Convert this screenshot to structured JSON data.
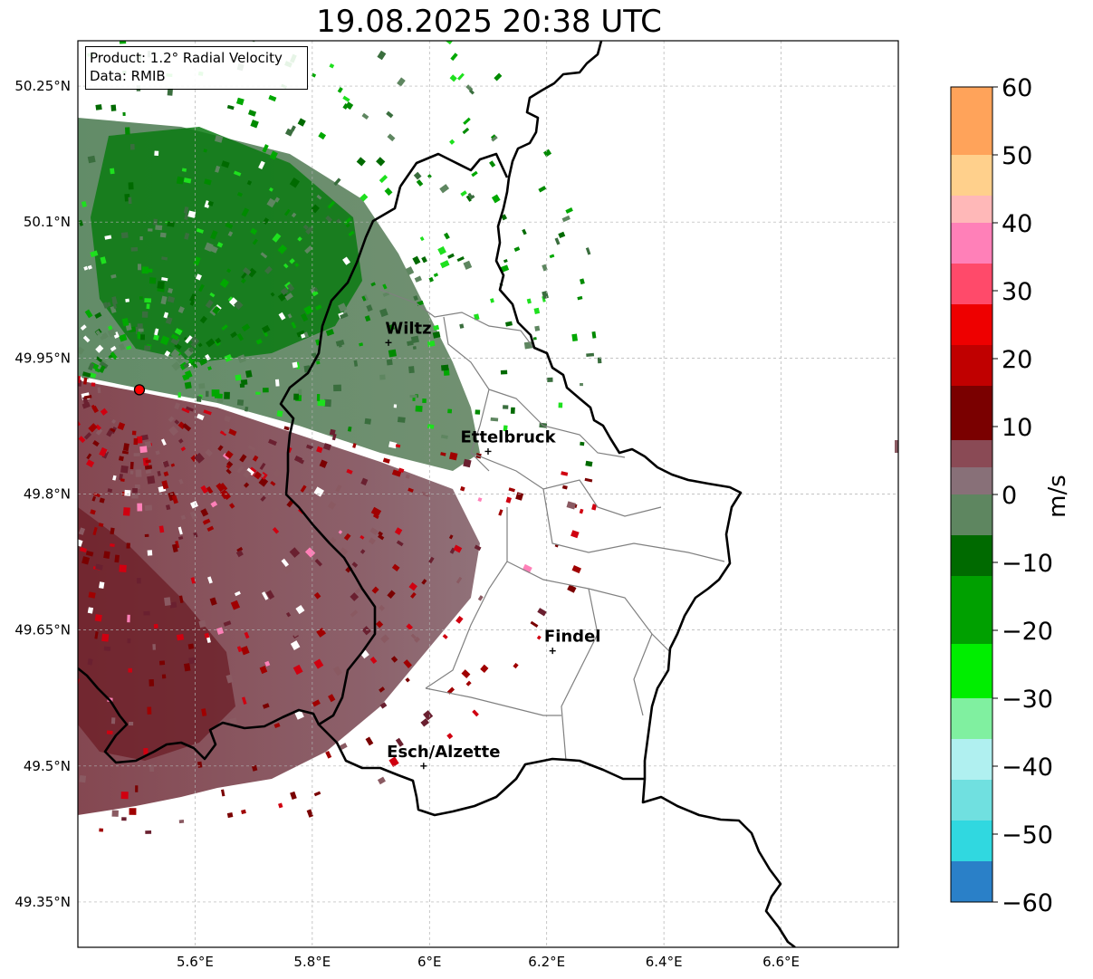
{
  "title": "19.08.2025 20:38 UTC",
  "info": {
    "product": "Product: 1.2° Radial Velocity",
    "data": "Data: RMIB"
  },
  "lat_ticks": [
    {
      "value": 50.25,
      "label": "50.25°N"
    },
    {
      "value": 50.1,
      "label": "50.1°N"
    },
    {
      "value": 49.95,
      "label": "49.95°N"
    },
    {
      "value": 49.8,
      "label": "49.8°N"
    },
    {
      "value": 49.65,
      "label": "49.65°N"
    },
    {
      "value": 49.5,
      "label": "49.5°N"
    },
    {
      "value": 49.35,
      "label": "49.35°N"
    }
  ],
  "lon_ticks": [
    {
      "value": 5.6,
      "label": "5.6°E"
    },
    {
      "value": 5.8,
      "label": "5.8°E"
    },
    {
      "value": 6.0,
      "label": "6°E"
    },
    {
      "value": 6.2,
      "label": "6.2°E"
    },
    {
      "value": 6.4,
      "label": "6.4°E"
    },
    {
      "value": 6.6,
      "label": "6.6°E"
    }
  ],
  "map_extent": {
    "lon_min": 5.4,
    "lon_max": 6.8,
    "lat_min": 49.3,
    "lat_max": 50.3
  },
  "cities": [
    {
      "name": "Wiltz",
      "lon": 5.93,
      "lat": 49.967
    },
    {
      "name": "Ettelbruck",
      "lon": 6.1,
      "lat": 49.847
    },
    {
      "name": "Findel",
      "lon": 6.21,
      "lat": 49.627
    },
    {
      "name": "Esch/Alzette",
      "lon": 5.99,
      "lat": 49.5
    }
  ],
  "radar_site": {
    "lon": 5.505,
    "lat": 49.915,
    "color": "#ff0000"
  },
  "colorbar": {
    "unit": "m/s",
    "min": -60,
    "max": 60,
    "ticks": [
      60,
      50,
      40,
      30,
      20,
      10,
      0,
      -10,
      -20,
      -30,
      -40,
      -50,
      -60
    ],
    "tick_labels": [
      "60",
      "50",
      "40",
      "30",
      "20",
      "10",
      "0",
      "−10",
      "−20",
      "−30",
      "−40",
      "−50",
      "−60"
    ],
    "stops": [
      {
        "from": 50,
        "to": 60,
        "color": "#ffa35a"
      },
      {
        "from": 44,
        "to": 50,
        "color": "#ffd08c"
      },
      {
        "from": 40,
        "to": 44,
        "color": "#ffb8b8"
      },
      {
        "from": 34,
        "to": 40,
        "color": "#ff80b8"
      },
      {
        "from": 28,
        "to": 34,
        "color": "#ff4a6a"
      },
      {
        "from": 22,
        "to": 28,
        "color": "#ee0000"
      },
      {
        "from": 16,
        "to": 22,
        "color": "#c00000"
      },
      {
        "from": 8,
        "to": 16,
        "color": "#7a0000"
      },
      {
        "from": 4,
        "to": 8,
        "color": "#8a4a55"
      },
      {
        "from": 0,
        "to": 4,
        "color": "#887078"
      },
      {
        "from": -6,
        "to": 0,
        "color": "#5e8660"
      },
      {
        "from": -12,
        "to": -6,
        "color": "#006a00"
      },
      {
        "from": -22,
        "to": -12,
        "color": "#00a000"
      },
      {
        "from": -30,
        "to": -22,
        "color": "#00ee00"
      },
      {
        "from": -36,
        "to": -30,
        "color": "#80f0a0"
      },
      {
        "from": -42,
        "to": -36,
        "color": "#b0f0f0"
      },
      {
        "from": -48,
        "to": -42,
        "color": "#70e0e0"
      },
      {
        "from": -54,
        "to": -48,
        "color": "#30d8e0"
      },
      {
        "from": -60,
        "to": -54,
        "color": "#2a80c8"
      }
    ]
  },
  "colors": {
    "border": "#000000",
    "district": "#808080",
    "grid": "#b0b0b0",
    "outbound": "#8a5a62",
    "inbound": "#5e8660",
    "inbound_strong": "#008a00",
    "outbound_strong": "#7a0000"
  }
}
